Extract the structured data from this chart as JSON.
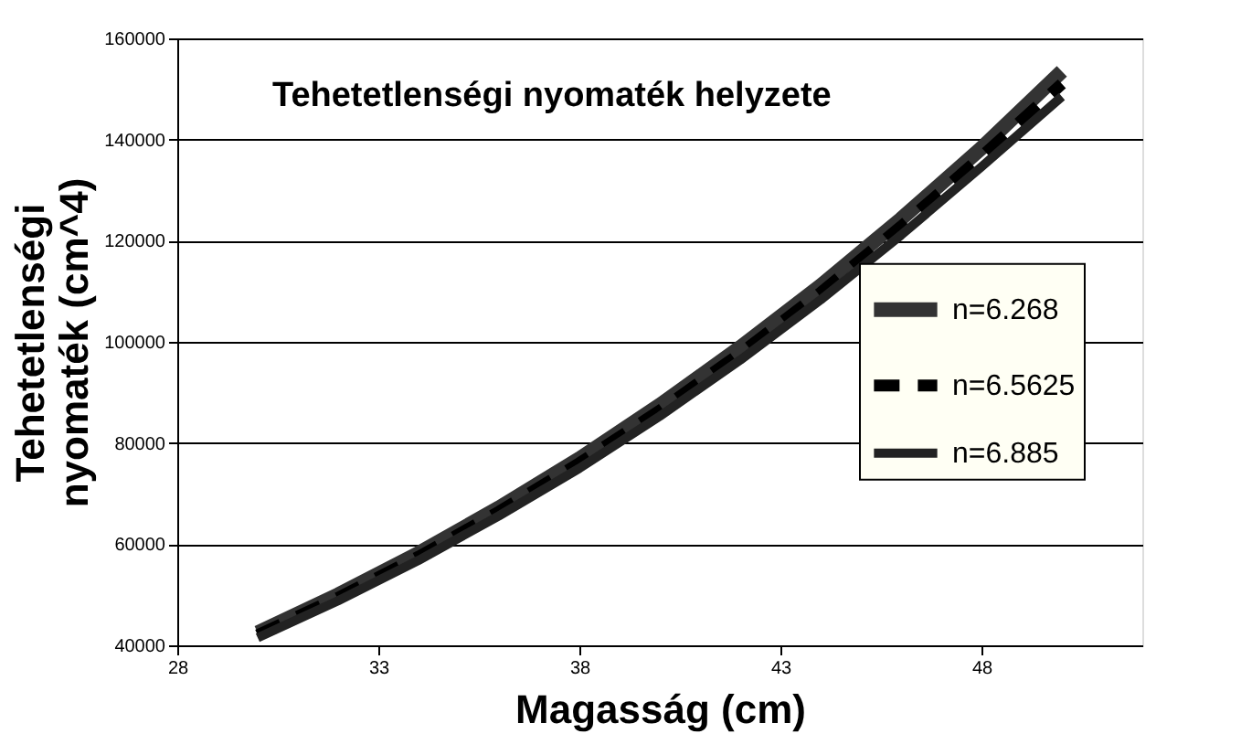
{
  "chart_data": {
    "type": "line",
    "title": "Tehetetlenségi nyomaték helyzete",
    "xlabel": "Magasság (cm)",
    "ylabel": "Tehetetlenségi nyomaték (cm^4)",
    "x": [
      30,
      32,
      34,
      36,
      38,
      40,
      42,
      44,
      46,
      48,
      50
    ],
    "series": [
      {
        "name": "n=6.268",
        "color": "#333333",
        "line_style": "solid",
        "values": [
          42500,
          50000,
          58200,
          67200,
          76900,
          87500,
          98900,
          111100,
          124300,
          138300,
          153500
        ]
      },
      {
        "name": "n=6.5625",
        "color": "#000000",
        "line_style": "dashed",
        "values": [
          42000,
          49400,
          57500,
          66400,
          76000,
          86400,
          97700,
          109700,
          122800,
          136600,
          151000
        ]
      },
      {
        "name": "n=6.885",
        "color": "#222222",
        "line_style": "solid",
        "values": [
          41500,
          48800,
          56800,
          65600,
          75000,
          85300,
          96400,
          108300,
          121100,
          134600,
          148500
        ]
      }
    ],
    "xlim": [
      28,
      52
    ],
    "xticks": [
      28,
      33,
      38,
      43,
      48
    ],
    "ylim": [
      40000,
      160000
    ],
    "yticks": [
      40000,
      60000,
      80000,
      100000,
      120000,
      140000,
      160000
    ],
    "grid": "y",
    "legend": "right",
    "marker": "none"
  }
}
